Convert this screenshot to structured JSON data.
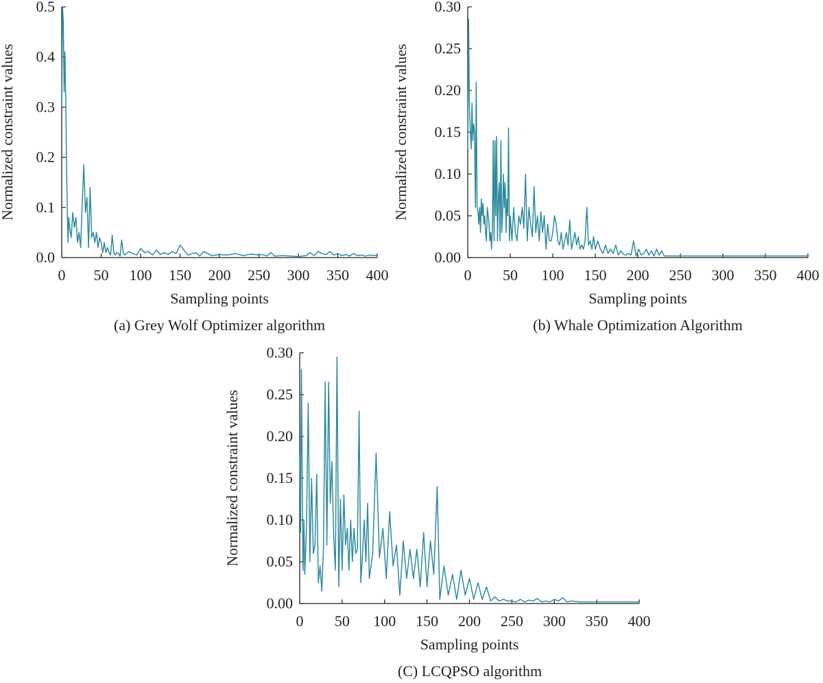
{
  "colors": {
    "series": "#2e8a9e",
    "axis": "#231f20"
  },
  "chart_data": [
    {
      "type": "line",
      "caption": "(a) Grey Wolf Optimizer algorithm",
      "xlabel": "Sampling points",
      "ylabel": "Normalized constraint values",
      "xlim": [
        0,
        400
      ],
      "ylim": [
        0,
        0.5
      ],
      "xticks": [
        0,
        50,
        100,
        150,
        200,
        250,
        300,
        350,
        400
      ],
      "yticks": [
        0.0,
        0.1,
        0.2,
        0.3,
        0.4,
        0.5
      ],
      "xtick_labels": [
        "0",
        "50",
        "100",
        "150",
        "200",
        "250",
        "300",
        "350",
        "400"
      ],
      "ytick_labels": [
        "0.0",
        "0.1",
        "0.2",
        "0.3",
        "0.4",
        "0.5"
      ],
      "grid": false,
      "series": [
        {
          "x": [
            0,
            1,
            2,
            3,
            4,
            5,
            6,
            7,
            8,
            9,
            10,
            12,
            14,
            16,
            18,
            20,
            22,
            24,
            26,
            28,
            30,
            32,
            34,
            36,
            38,
            40,
            42,
            44,
            46,
            48,
            50,
            52,
            54,
            56,
            58,
            60,
            62,
            64,
            66,
            68,
            70,
            72,
            74,
            76,
            78,
            80,
            85,
            90,
            95,
            100,
            105,
            110,
            115,
            120,
            125,
            130,
            135,
            140,
            145,
            150,
            160,
            170,
            175,
            180,
            190,
            200,
            210,
            220,
            230,
            240,
            250,
            255,
            260,
            265,
            270,
            280,
            290,
            300,
            305,
            310,
            315,
            320,
            325,
            330,
            335,
            340,
            345,
            350,
            355,
            360,
            365,
            370,
            375,
            380,
            385,
            390,
            395,
            400
          ],
          "y": [
            0.3,
            0.5,
            0.47,
            0.33,
            0.41,
            0.32,
            0.2,
            0.1,
            0.03,
            0.08,
            0.06,
            0.04,
            0.09,
            0.06,
            0.08,
            0.03,
            0.05,
            0.02,
            0.11,
            0.185,
            0.09,
            0.12,
            0.02,
            0.14,
            0.04,
            0.05,
            0.03,
            0.05,
            0.02,
            0.04,
            0.03,
            0.01,
            0.03,
            0.01,
            0.02,
            0.01,
            0.005,
            0.045,
            0.01,
            0.005,
            0.01,
            0.008,
            0.003,
            0.035,
            0.01,
            0.005,
            0.012,
            0.008,
            0.005,
            0.018,
            0.01,
            0.012,
            0.005,
            0.015,
            0.006,
            0.01,
            0.006,
            0.012,
            0.008,
            0.025,
            0.005,
            0.01,
            0.003,
            0.012,
            0.004,
            0.006,
            0.005,
            0.008,
            0.004,
            0.007,
            0.005,
            0.006,
            0.003,
            0.01,
            0.003,
            0.004,
            0.003,
            0.002,
            0.003,
            0.004,
            0.01,
            0.004,
            0.012,
            0.008,
            0.006,
            0.012,
            0.005,
            0.008,
            0.004,
            0.006,
            0.003,
            0.008,
            0.004,
            0.005,
            0.003,
            0.005,
            0.004,
            0.005
          ]
        }
      ]
    },
    {
      "type": "line",
      "caption": "(b) Whale Optimization Algorithm",
      "xlabel": "Sampling points",
      "ylabel": "Normalized constraint values",
      "xlim": [
        0,
        400
      ],
      "ylim": [
        0,
        0.3
      ],
      "xticks": [
        0,
        50,
        100,
        150,
        200,
        250,
        300,
        350,
        400
      ],
      "yticks": [
        0.0,
        0.05,
        0.1,
        0.15,
        0.2,
        0.25,
        0.3
      ],
      "xtick_labels": [
        "0",
        "50",
        "100",
        "150",
        "200",
        "250",
        "300",
        "350",
        "400"
      ],
      "ytick_labels": [
        "0.00",
        "0.05",
        "0.10",
        "0.15",
        "0.20",
        "0.25",
        "0.30"
      ],
      "grid": false,
      "series": [
        {
          "x": [
            0,
            1,
            2,
            3,
            4,
            5,
            6,
            7,
            8,
            9,
            10,
            11,
            12,
            13,
            14,
            15,
            16,
            17,
            18,
            19,
            20,
            21,
            22,
            23,
            24,
            25,
            26,
            27,
            28,
            29,
            30,
            31,
            32,
            33,
            34,
            35,
            36,
            37,
            38,
            39,
            40,
            41,
            42,
            43,
            44,
            45,
            46,
            47,
            48,
            49,
            50,
            52,
            54,
            56,
            58,
            60,
            62,
            64,
            66,
            68,
            70,
            72,
            74,
            76,
            78,
            80,
            82,
            84,
            86,
            88,
            90,
            92,
            94,
            96,
            98,
            100,
            102,
            104,
            106,
            108,
            110,
            112,
            114,
            116,
            118,
            120,
            122,
            124,
            126,
            128,
            130,
            132,
            134,
            136,
            138,
            140,
            142,
            144,
            146,
            148,
            150,
            153,
            156,
            159,
            162,
            165,
            168,
            171,
            174,
            177,
            180,
            183,
            186,
            189,
            192,
            195,
            198,
            201,
            204,
            207,
            210,
            213,
            216,
            219,
            222,
            225,
            228,
            231,
            240,
            260,
            300,
            350,
            400
          ],
          "y": [
            0.13,
            0.285,
            0.18,
            0.15,
            0.13,
            0.185,
            0.14,
            0.16,
            0.15,
            0.06,
            0.21,
            0.06,
            0.055,
            0.04,
            0.06,
            0.03,
            0.07,
            0.05,
            0.065,
            0.04,
            0.05,
            0.03,
            0.02,
            0.06,
            0.05,
            0.04,
            0.02,
            0.03,
            0.01,
            0.04,
            0.14,
            0.02,
            0.14,
            0.05,
            0.145,
            0.02,
            0.07,
            0.09,
            0.02,
            0.14,
            0.03,
            0.05,
            0.1,
            0.06,
            0.09,
            0.03,
            0.07,
            0.05,
            0.155,
            0.02,
            0.05,
            0.02,
            0.06,
            0.03,
            0.02,
            0.05,
            0.04,
            0.06,
            0.035,
            0.1,
            0.02,
            0.06,
            0.04,
            0.025,
            0.085,
            0.03,
            0.05,
            0.02,
            0.055,
            0.03,
            0.05,
            0.01,
            0.04,
            0.02,
            0.02,
            0.03,
            0.05,
            0.04,
            0.02,
            0.015,
            0.03,
            0.01,
            0.02,
            0.03,
            0.015,
            0.045,
            0.01,
            0.02,
            0.03,
            0.015,
            0.025,
            0.01,
            0.015,
            0.01,
            0.02,
            0.06,
            0.015,
            0.02,
            0.01,
            0.025,
            0.01,
            0.02,
            0.01,
            0.005,
            0.015,
            0.005,
            0.01,
            0.005,
            0.015,
            0.003,
            0.008,
            0.004,
            0.003,
            0.005,
            0.003,
            0.02,
            0.002,
            0.01,
            0.003,
            0.005,
            0.01,
            0.003,
            0.008,
            0.002,
            0.01,
            0.003,
            0.008,
            0.002,
            0.002,
            0.002,
            0.002,
            0.002,
            0.002
          ]
        }
      ]
    },
    {
      "type": "line",
      "caption": "(C) LCQPSO algorithm",
      "xlabel": "Sampling points",
      "ylabel": "Normalized constraint values",
      "xlim": [
        0,
        400
      ],
      "ylim": [
        0,
        0.3
      ],
      "xticks": [
        0,
        50,
        100,
        150,
        200,
        250,
        300,
        350,
        400
      ],
      "yticks": [
        0.0,
        0.05,
        0.1,
        0.15,
        0.2,
        0.25,
        0.3
      ],
      "xtick_labels": [
        "0",
        "50",
        "100",
        "150",
        "200",
        "250",
        "300",
        "350",
        "400"
      ],
      "ytick_labels": [
        "0.00",
        "0.05",
        "0.10",
        "0.15",
        "0.20",
        "0.25",
        "0.30"
      ],
      "grid": false,
      "series": [
        {
          "x": [
            0,
            1,
            2,
            3,
            4,
            5,
            6,
            8,
            10,
            12,
            14,
            16,
            18,
            20,
            22,
            24,
            26,
            28,
            30,
            32,
            34,
            36,
            38,
            40,
            42,
            44,
            46,
            48,
            50,
            52,
            54,
            56,
            58,
            60,
            62,
            64,
            66,
            68,
            70,
            72,
            74,
            76,
            78,
            80,
            82,
            86,
            90,
            94,
            98,
            102,
            106,
            110,
            114,
            118,
            122,
            126,
            130,
            134,
            138,
            142,
            146,
            150,
            154,
            158,
            162,
            165,
            170,
            175,
            180,
            185,
            190,
            195,
            200,
            205,
            210,
            215,
            220,
            225,
            230,
            235,
            240,
            245,
            250,
            255,
            260,
            265,
            270,
            275,
            280,
            285,
            290,
            295,
            300,
            305,
            310,
            315,
            320,
            330,
            340,
            360,
            380,
            400
          ],
          "y": [
            0.18,
            0.085,
            0.28,
            0.15,
            0.04,
            0.1,
            0.035,
            0.09,
            0.24,
            0.05,
            0.15,
            0.06,
            0.07,
            0.155,
            0.025,
            0.045,
            0.015,
            0.065,
            0.265,
            0.07,
            0.265,
            0.12,
            0.17,
            0.08,
            0.04,
            0.295,
            0.02,
            0.125,
            0.04,
            0.13,
            0.07,
            0.09,
            0.04,
            0.1,
            0.05,
            0.09,
            0.06,
            0.065,
            0.23,
            0.025,
            0.06,
            0.1,
            0.05,
            0.12,
            0.03,
            0.06,
            0.18,
            0.055,
            0.09,
            0.03,
            0.11,
            0.045,
            0.07,
            0.01,
            0.075,
            0.03,
            0.065,
            0.03,
            0.065,
            0.02,
            0.085,
            0.02,
            0.075,
            0.035,
            0.14,
            0.005,
            0.045,
            0.01,
            0.035,
            0.005,
            0.04,
            0.01,
            0.03,
            0.005,
            0.025,
            0.005,
            0.02,
            0.003,
            0.008,
            0.003,
            0.005,
            0.003,
            0.003,
            0.002,
            0.005,
            0.002,
            0.004,
            0.003,
            0.006,
            0.002,
            0.003,
            0.002,
            0.005,
            0.003,
            0.007,
            0.002,
            0.003,
            0.002,
            0.002,
            0.002,
            0.002,
            0.002
          ]
        }
      ]
    }
  ]
}
